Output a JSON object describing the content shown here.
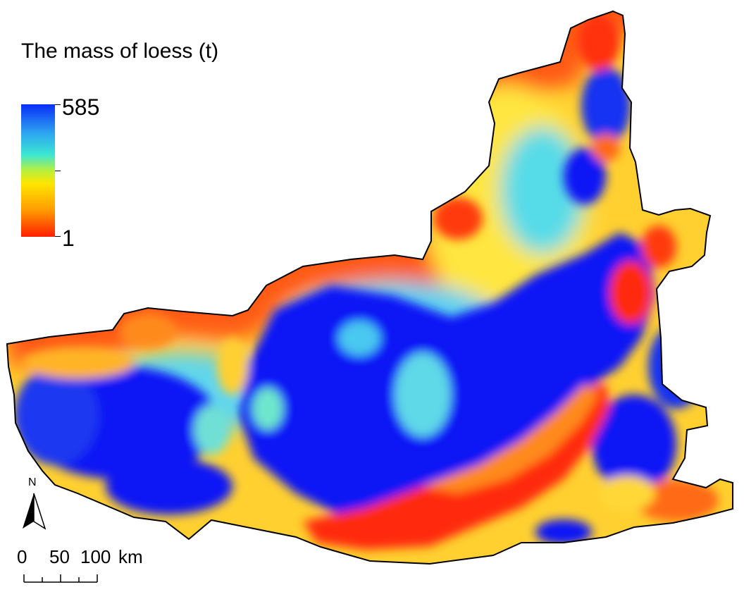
{
  "legend": {
    "title": "The mass of loess (t)",
    "max_label": "585",
    "min_label": "1",
    "colors": [
      "#ff1e00",
      "#ff9a00",
      "#ffe600",
      "#b8f03c",
      "#3ce6d2",
      "#2ea6f0",
      "#0a2ef8"
    ]
  },
  "north_arrow": {
    "label": "N",
    "icon": "north-arrow-icon"
  },
  "scale_bar": {
    "labels": [
      "0",
      "50",
      "100",
      "km"
    ]
  },
  "map": {
    "boundary_color": "#000000",
    "colors": {
      "high": "#0a14f5",
      "mid": "#55d8ee",
      "low_mid": "#ffe135",
      "low": "#ff3a10"
    }
  }
}
